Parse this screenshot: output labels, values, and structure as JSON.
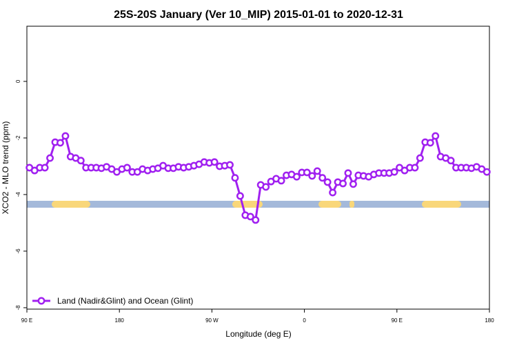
{
  "chart_data": {
    "type": "line",
    "title": "25S-20S January (Ver 10_MIP)   2015-01-01 to 2020-12-31",
    "x_label": "Longitude (deg E)",
    "y_label": "XCO2 - MLO trend (ppm)",
    "xlim": [
      90,
      540
    ],
    "xticks": [
      {
        "value": 90,
        "label": "90 E"
      },
      180,
      {
        "value": 270,
        "label": "90 W"
      },
      {
        "value": 360,
        "label": "0"
      },
      {
        "value": 450,
        "label": "90 E"
      },
      {
        "value": 540,
        "label": "180"
      }
    ],
    "ylim": [
      -8.05,
      1.95
    ],
    "yticks": [
      0,
      -2,
      -4,
      -6,
      -8
    ],
    "legend": "lower left",
    "x": [
      92.5,
      97.5,
      102.5,
      107.5,
      112.5,
      117.5,
      122.5,
      127.5,
      132.5,
      137.5,
      142.5,
      147.5,
      152.5,
      157.5,
      162.5,
      167.5,
      172.5,
      177.5,
      182.5,
      187.5,
      192.5,
      197.5,
      202.5,
      207.5,
      212.5,
      217.5,
      222.5,
      227.5,
      232.5,
      237.5,
      242.5,
      247.5,
      252.5,
      257.5,
      262.5,
      267.5,
      272.5,
      277.5,
      282.5,
      287.5,
      292.5,
      297.5,
      302.5,
      307.5,
      312.5,
      317.5,
      322.5,
      327.5,
      332.5,
      337.5,
      342.5,
      347.5,
      352.5,
      357.5,
      362.5,
      367.5,
      372.5,
      377.5,
      382.5,
      387.5,
      392.5,
      397.5,
      402.5,
      407.5,
      412.5,
      417.5,
      422.5,
      427.5,
      432.5,
      437.5,
      442.5,
      447.5,
      452.5,
      457.5,
      462.5,
      467.5,
      472.5,
      477.5,
      482.5,
      487.5,
      492.5,
      497.5,
      502.5,
      507.5,
      512.5,
      517.5,
      522.5,
      527.5,
      532.5,
      537.5
    ],
    "series": [
      {
        "name": "Land (Nadir&Glint) and Ocean (Glint)",
        "color": "#a020f0",
        "values": [
          -3.05,
          -3.15,
          -3.05,
          -3.05,
          -2.71,
          -2.15,
          -2.17,
          -1.93,
          -2.66,
          -2.71,
          -2.8,
          -3.05,
          -3.05,
          -3.05,
          -3.07,
          -3.02,
          -3.1,
          -3.2,
          -3.1,
          -3.05,
          -3.2,
          -3.2,
          -3.1,
          -3.15,
          -3.1,
          -3.07,
          -2.98,
          -3.07,
          -3.07,
          -3.02,
          -3.05,
          -3.02,
          -2.98,
          -2.93,
          -2.85,
          -2.88,
          -2.85,
          -3.0,
          -2.98,
          -2.95,
          -3.41,
          -4.05,
          -4.73,
          -4.78,
          -4.9,
          -3.66,
          -3.73,
          -3.54,
          -3.44,
          -3.51,
          -3.32,
          -3.29,
          -3.37,
          -3.22,
          -3.22,
          -3.34,
          -3.17,
          -3.41,
          -3.56,
          -3.93,
          -3.56,
          -3.61,
          -3.24,
          -3.63,
          -3.32,
          -3.34,
          -3.37,
          -3.29,
          -3.24,
          -3.24,
          -3.24,
          -3.2,
          -3.05,
          -3.15,
          -3.05,
          -3.05,
          -2.71,
          -2.15,
          -2.17,
          -1.93,
          -2.66,
          -2.71,
          -2.8,
          -3.05,
          -3.05,
          -3.05,
          -3.07,
          -3.02,
          -3.1,
          -3.2
        ]
      }
    ]
  }
}
